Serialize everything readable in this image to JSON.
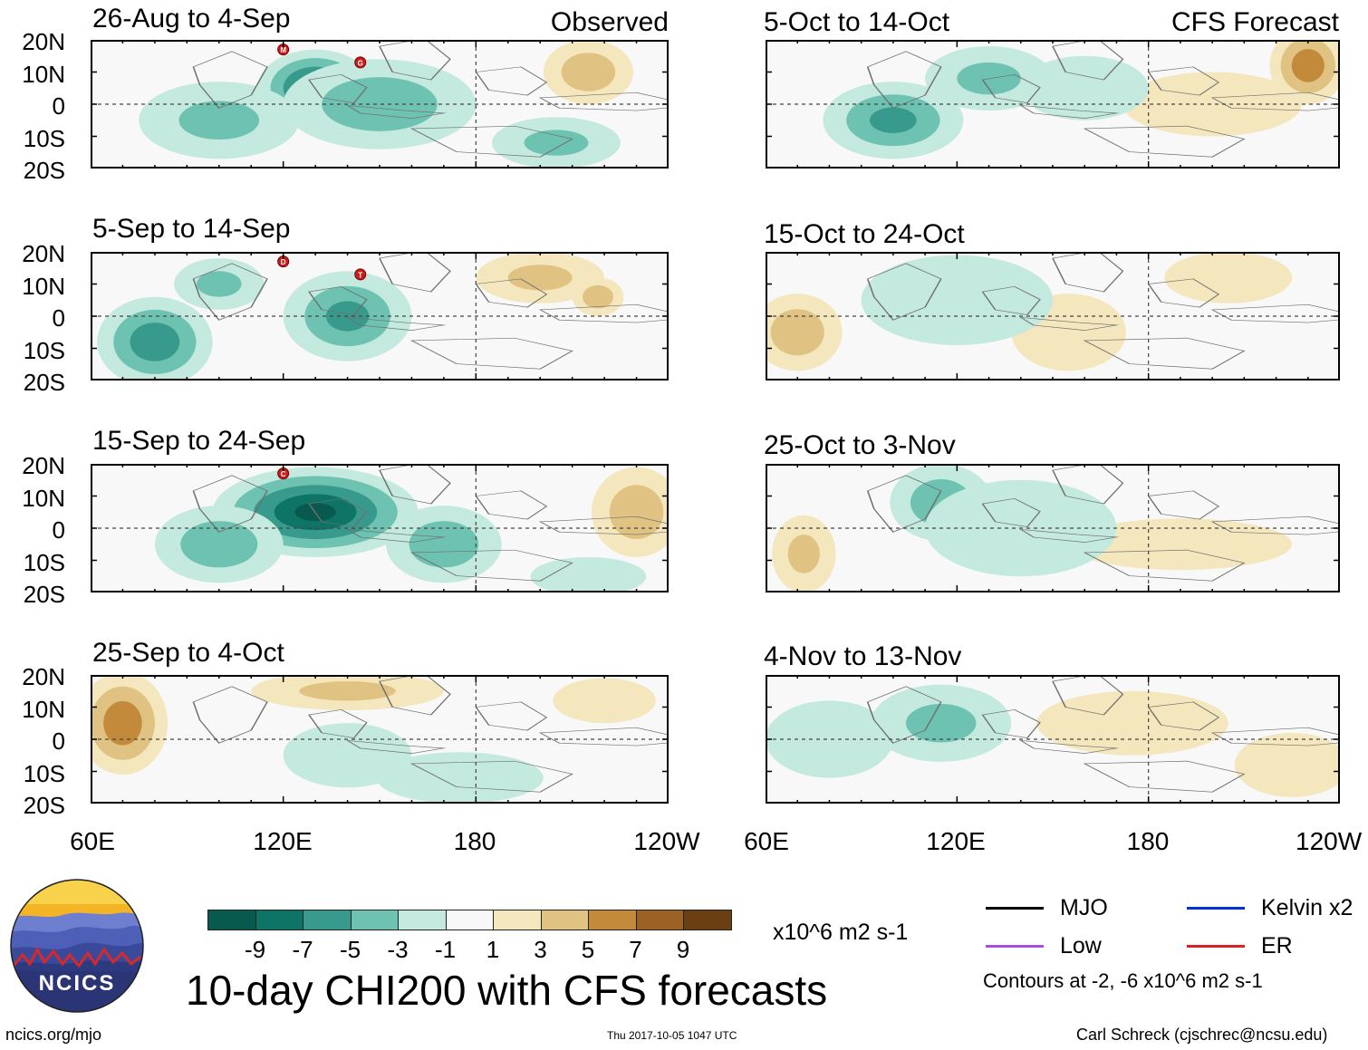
{
  "chart_data": {
    "type": "heatmap",
    "title": "10-day CHI200 with CFS forecasts",
    "units": "x10^6 m2 s-1",
    "colorbar": {
      "labels": [
        "-9",
        "-7",
        "-5",
        "-3",
        "-1",
        "1",
        "3",
        "5",
        "7",
        "9"
      ],
      "colors": [
        "#075a4d",
        "#0e7465",
        "#379a8c",
        "#6dc2b1",
        "#c4e9de",
        "#f8f8f8",
        "#f4e6bd",
        "#e0c382",
        "#c28a3a",
        "#9c6124",
        "#6b3f12"
      ]
    },
    "lat_labels": [
      "20N",
      "10N",
      "0",
      "10S",
      "20S"
    ],
    "lon_labels": [
      "60E",
      "120E",
      "180",
      "120W"
    ],
    "lon_labels_right": [
      "60E",
      "120E",
      "180",
      "120W"
    ],
    "lon_range_deg": [
      60,
      240
    ],
    "lat_range_deg": [
      -20,
      20
    ],
    "left_column_label": "Observed",
    "right_column_label": "CFS Forecast",
    "panels": [
      {
        "period": "26-Aug to 4-Sep",
        "source": "Observed",
        "storm_markers": [
          "M",
          "G"
        ],
        "blobs": [
          [
            130,
            5,
            18,
            12,
            -8
          ],
          [
            150,
            0,
            30,
            14,
            -4
          ],
          [
            100,
            -5,
            25,
            12,
            -3
          ],
          [
            215,
            10,
            14,
            10,
            4
          ],
          [
            205,
            -12,
            20,
            8,
            -3
          ]
        ]
      },
      {
        "period": "5-Sep to 14-Sep",
        "source": "Observed",
        "storm_markers": [
          "D",
          "T"
        ],
        "blobs": [
          [
            80,
            -8,
            18,
            14,
            -6
          ],
          [
            140,
            0,
            20,
            14,
            -5
          ],
          [
            100,
            10,
            14,
            8,
            -3
          ],
          [
            200,
            12,
            20,
            8,
            3
          ],
          [
            218,
            6,
            8,
            6,
            4
          ]
        ]
      },
      {
        "period": "15-Sep to 24-Sep",
        "source": "Observed",
        "storm_markers": [
          "C"
        ],
        "blobs": [
          [
            130,
            5,
            32,
            14,
            -9
          ],
          [
            100,
            -5,
            20,
            12,
            -4
          ],
          [
            170,
            -5,
            18,
            12,
            -4
          ],
          [
            230,
            5,
            14,
            14,
            4
          ],
          [
            215,
            -15,
            18,
            6,
            -2
          ]
        ]
      },
      {
        "period": "25-Sep to 4-Oct",
        "source": "Observed",
        "storm_markers": [],
        "blobs": [
          [
            70,
            5,
            14,
            16,
            6
          ],
          [
            140,
            15,
            30,
            6,
            3
          ],
          [
            220,
            12,
            16,
            7,
            2
          ],
          [
            175,
            -12,
            26,
            8,
            -2
          ],
          [
            140,
            -5,
            20,
            10,
            -2
          ]
        ]
      },
      {
        "period": "5-Oct to 14-Oct",
        "source": "CFS Forecast",
        "storm_markers": [],
        "blobs": [
          [
            100,
            -5,
            22,
            12,
            -5
          ],
          [
            130,
            8,
            20,
            10,
            -3
          ],
          [
            230,
            12,
            12,
            12,
            6
          ],
          [
            200,
            0,
            28,
            10,
            2
          ],
          [
            160,
            5,
            20,
            10,
            -2
          ]
        ]
      },
      {
        "period": "15-Oct to 24-Oct",
        "source": "CFS Forecast",
        "storm_markers": [],
        "blobs": [
          [
            70,
            -5,
            14,
            12,
            4
          ],
          [
            155,
            -5,
            18,
            12,
            2
          ],
          [
            205,
            12,
            20,
            8,
            2
          ],
          [
            120,
            5,
            30,
            14,
            -2
          ]
        ]
      },
      {
        "period": "25-Oct to 3-Nov",
        "source": "CFS Forecast",
        "storm_markers": [],
        "blobs": [
          [
            115,
            8,
            16,
            12,
            -4
          ],
          [
            72,
            -8,
            10,
            12,
            3
          ],
          [
            190,
            -5,
            35,
            8,
            2
          ],
          [
            140,
            0,
            30,
            15,
            -2
          ]
        ]
      },
      {
        "period": "4-Nov to 13-Nov",
        "source": "CFS Forecast",
        "storm_markers": [],
        "blobs": [
          [
            115,
            5,
            22,
            12,
            -3
          ],
          [
            175,
            5,
            30,
            10,
            2
          ],
          [
            80,
            0,
            20,
            12,
            -2
          ],
          [
            225,
            -8,
            18,
            10,
            2
          ]
        ]
      }
    ]
  },
  "legend": {
    "items": [
      {
        "label": "MJO",
        "color": "#000000"
      },
      {
        "label": "Kelvin x2",
        "color": "#0033dd"
      },
      {
        "label": "Low",
        "color": "#a94fdd"
      },
      {
        "label": "ER",
        "color": "#dd2222"
      }
    ],
    "note": "Contours at -2, -6 x10^6 m2 s-1"
  },
  "logo": {
    "text": "NCICS"
  },
  "footer": {
    "url": "ncics.org/mjo",
    "timestamp": "Thu 2017-10-05 1047 UTC",
    "author": "Carl Schreck (cjschrec@ncsu.edu)"
  }
}
